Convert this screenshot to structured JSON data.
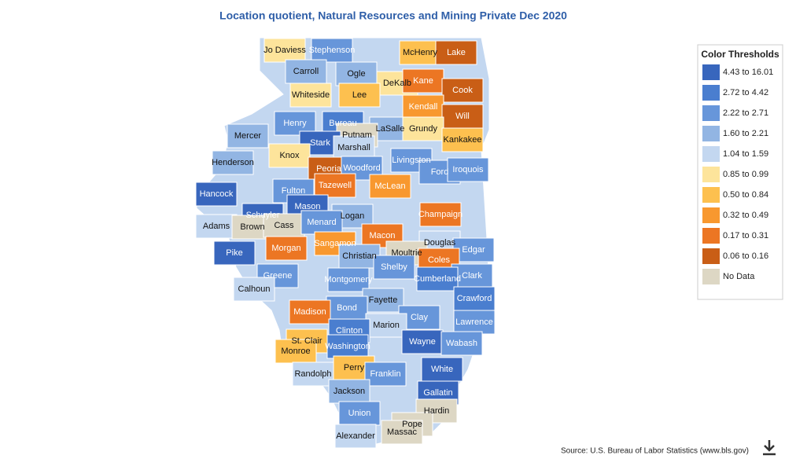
{
  "title": "Location quotient, Natural Resources and Mining Private Dec 2020",
  "legend": {
    "title": "Color Thresholds",
    "items": [
      {
        "label": "4.43 to 16.01",
        "color": "#3866bd"
      },
      {
        "label": "2.72 to 4.42",
        "color": "#4a7ecf"
      },
      {
        "label": "2.22 to 2.71",
        "color": "#6796da"
      },
      {
        "label": "1.60 to 2.21",
        "color": "#92b5e3"
      },
      {
        "label": "1.04 to 1.59",
        "color": "#c3d7f0"
      },
      {
        "label": "0.85 to 0.99",
        "color": "#fde49b"
      },
      {
        "label": "0.50 to 0.84",
        "color": "#fdc04f"
      },
      {
        "label": "0.32 to 0.49",
        "color": "#f8982f"
      },
      {
        "label": "0.17 to 0.31",
        "color": "#ec7623"
      },
      {
        "label": "0.06 to 0.16",
        "color": "#c95e16"
      },
      {
        "label": "No Data",
        "color": "#ddd7c4"
      }
    ]
  },
  "counties": [
    {
      "name": "Jo Daviess",
      "class": 5
    },
    {
      "name": "Stephenson",
      "class": 2
    },
    {
      "name": "McHenry",
      "class": 6
    },
    {
      "name": "Lake",
      "class": 9
    },
    {
      "name": "Carroll",
      "class": 3
    },
    {
      "name": "Ogle",
      "class": 3
    },
    {
      "name": "DeKalb",
      "class": 5
    },
    {
      "name": "Kane",
      "class": 8
    },
    {
      "name": "Cook",
      "class": 9
    },
    {
      "name": "Whiteside",
      "class": 5
    },
    {
      "name": "Lee",
      "class": 6
    },
    {
      "name": "Kendall",
      "class": 7
    },
    {
      "name": "Will",
      "class": 9
    },
    {
      "name": "Henry",
      "class": 2
    },
    {
      "name": "Bureau",
      "class": 1
    },
    {
      "name": "LaSalle",
      "class": 3
    },
    {
      "name": "Grundy",
      "class": 5
    },
    {
      "name": "Putnam",
      "class": 10
    },
    {
      "name": "Mercer",
      "class": 3
    },
    {
      "name": "Kankakee",
      "class": 6
    },
    {
      "name": "Stark",
      "class": 0
    },
    {
      "name": "Marshall",
      "class": 4
    },
    {
      "name": "Knox",
      "class": 5
    },
    {
      "name": "Henderson",
      "class": 3
    },
    {
      "name": "Peoria",
      "class": 9
    },
    {
      "name": "Woodford",
      "class": 2
    },
    {
      "name": "Livingston",
      "class": 2
    },
    {
      "name": "Ford",
      "class": 2
    },
    {
      "name": "Iroquois",
      "class": 2
    },
    {
      "name": "Tazewell",
      "class": 8
    },
    {
      "name": "McLean",
      "class": 7
    },
    {
      "name": "Fulton",
      "class": 2
    },
    {
      "name": "Hancock",
      "class": 0
    },
    {
      "name": "Mason",
      "class": 0
    },
    {
      "name": "Schuyler",
      "class": 0
    },
    {
      "name": "Champaign",
      "class": 8
    },
    {
      "name": "Logan",
      "class": 3
    },
    {
      "name": "Adams",
      "class": 4
    },
    {
      "name": "Brown",
      "class": 10
    },
    {
      "name": "Cass",
      "class": 10
    },
    {
      "name": "Menard",
      "class": 2
    },
    {
      "name": "Macon",
      "class": 8
    },
    {
      "name": "Sangamon",
      "class": 7
    },
    {
      "name": "Douglas",
      "class": 4
    },
    {
      "name": "Morgan",
      "class": 8
    },
    {
      "name": "Edgar",
      "class": 2
    },
    {
      "name": "Moultrie",
      "class": 10
    },
    {
      "name": "Pike",
      "class": 0
    },
    {
      "name": "Christian",
      "class": 3
    },
    {
      "name": "Coles",
      "class": 8
    },
    {
      "name": "Shelby",
      "class": 2
    },
    {
      "name": "Greene",
      "class": 2
    },
    {
      "name": "Clark",
      "class": 2
    },
    {
      "name": "Montgomery",
      "class": 2
    },
    {
      "name": "Cumberland",
      "class": 1
    },
    {
      "name": "Calhoun",
      "class": 4
    },
    {
      "name": "Crawford",
      "class": 1
    },
    {
      "name": "Fayette",
      "class": 3
    },
    {
      "name": "Bond",
      "class": 2
    },
    {
      "name": "Madison",
      "class": 8
    },
    {
      "name": "Clay",
      "class": 2
    },
    {
      "name": "Lawrence",
      "class": 2
    },
    {
      "name": "Marion",
      "class": 4
    },
    {
      "name": "Clinton",
      "class": 1
    },
    {
      "name": "St. Clair",
      "class": 6
    },
    {
      "name": "Wayne",
      "class": 0
    },
    {
      "name": "Wabash",
      "class": 2
    },
    {
      "name": "Washington",
      "class": 1
    },
    {
      "name": "Monroe",
      "class": 6
    },
    {
      "name": "White",
      "class": 0
    },
    {
      "name": "Perry",
      "class": 6
    },
    {
      "name": "Franklin",
      "class": 2
    },
    {
      "name": "Randolph",
      "class": 4
    },
    {
      "name": "Jackson",
      "class": 3
    },
    {
      "name": "Gallatin",
      "class": 0
    },
    {
      "name": "Hardin",
      "class": 10
    },
    {
      "name": "Union",
      "class": 2
    },
    {
      "name": "Pope",
      "class": 10
    },
    {
      "name": "Alexander",
      "class": 4
    },
    {
      "name": "Massac",
      "class": 10
    }
  ],
  "source": "Source: U.S. Bureau of Labor Statistics (www.bls.gov)"
}
